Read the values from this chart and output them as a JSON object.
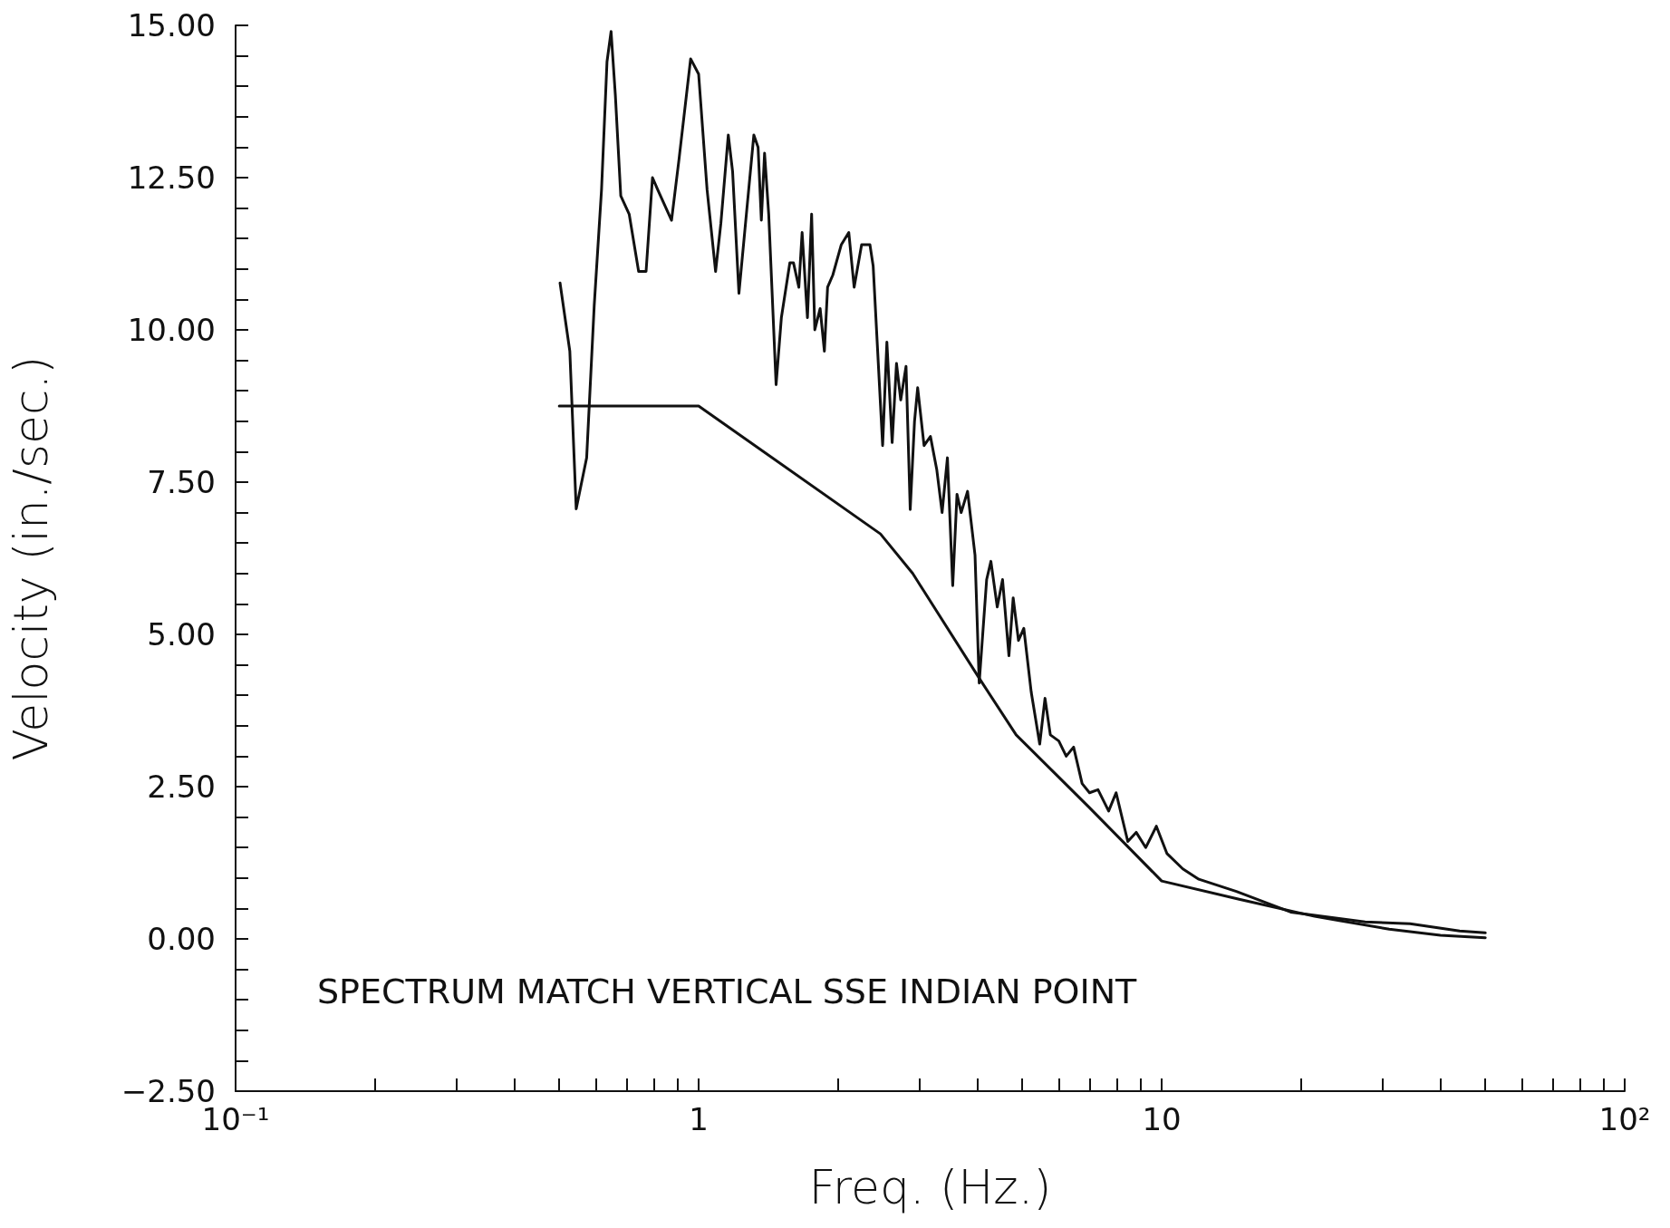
{
  "chart_data": {
    "type": "line",
    "xlabel": "Freq. (Hz.)",
    "ylabel": "Velocity (in./sec.)",
    "annotations": [
      "SPECTRUM MATCH VERTICAL SSE INDIAN POINT"
    ],
    "log": "x",
    "grid": false,
    "marker": "none",
    "line_style": "solid",
    "xlim": [
      0.1,
      100
    ],
    "ylim": [
      -2.5,
      15
    ],
    "xticks": [
      {
        "value": 0.1,
        "label": "10⁻¹"
      },
      {
        "value": 0.2,
        "label": null
      },
      {
        "value": 0.3,
        "label": null
      },
      {
        "value": 0.4,
        "label": null
      },
      {
        "value": 0.5,
        "label": null
      },
      {
        "value": 0.6,
        "label": null
      },
      {
        "value": 0.7,
        "label": null
      },
      {
        "value": 0.8,
        "label": null
      },
      {
        "value": 0.9,
        "label": null
      },
      1,
      {
        "value": 2,
        "label": null
      },
      {
        "value": 3,
        "label": null
      },
      {
        "value": 4,
        "label": null
      },
      {
        "value": 5,
        "label": null
      },
      {
        "value": 6,
        "label": null
      },
      {
        "value": 7,
        "label": null
      },
      {
        "value": 8,
        "label": null
      },
      {
        "value": 9,
        "label": null
      },
      10,
      {
        "value": 20,
        "label": null
      },
      {
        "value": 30,
        "label": null
      },
      {
        "value": 40,
        "label": null
      },
      {
        "value": 50,
        "label": null
      },
      {
        "value": 60,
        "label": null
      },
      {
        "value": 70,
        "label": null
      },
      {
        "value": 80,
        "label": null
      },
      {
        "value": 90,
        "label": null
      },
      {
        "value": 100,
        "label": "10²"
      }
    ],
    "yticks": [
      {
        "value": -2.5,
        "label": "−2.50"
      },
      {
        "value": -2,
        "label": null
      },
      {
        "value": -1.5,
        "label": null
      },
      {
        "value": -1,
        "label": null
      },
      {
        "value": -0.5,
        "label": null
      },
      {
        "value": 0,
        "label": "0.00"
      },
      {
        "value": 0.5,
        "label": null
      },
      {
        "value": 1,
        "label": null
      },
      {
        "value": 1.5,
        "label": null
      },
      {
        "value": 2,
        "label": null
      },
      {
        "value": 2.5,
        "label": "2.50"
      },
      {
        "value": 3,
        "label": null
      },
      {
        "value": 3.5,
        "label": null
      },
      {
        "value": 4,
        "label": null
      },
      {
        "value": 4.5,
        "label": null
      },
      {
        "value": 5,
        "label": "5.00"
      },
      {
        "value": 5.5,
        "label": null
      },
      {
        "value": 6,
        "label": null
      },
      {
        "value": 6.5,
        "label": null
      },
      {
        "value": 7,
        "label": null
      },
      {
        "value": 7.5,
        "label": "7.50"
      },
      {
        "value": 8,
        "label": null
      },
      {
        "value": 8.5,
        "label": null
      },
      {
        "value": 9,
        "label": null
      },
      {
        "value": 9.5,
        "label": null
      },
      {
        "value": 10,
        "label": "10.00"
      },
      {
        "value": 10.5,
        "label": null
      },
      {
        "value": 11,
        "label": null
      },
      {
        "value": 11.5,
        "label": null
      },
      {
        "value": 12,
        "label": null
      },
      {
        "value": 12.5,
        "label": "12.50"
      },
      {
        "value": 13,
        "label": null
      },
      {
        "value": 13.5,
        "label": null
      },
      {
        "value": 14,
        "label": null
      },
      {
        "value": 14.5,
        "label": null
      },
      {
        "value": 15,
        "label": "15.00"
      }
    ],
    "series": [
      {
        "color": "#111111",
        "x": [
          0.502,
          0.527,
          0.544,
          0.573,
          0.595,
          0.617,
          0.634,
          0.647,
          0.661,
          0.679,
          0.708,
          0.742,
          0.77,
          0.795,
          0.816,
          0.874,
          0.907,
          0.961,
          1.0,
          1.043,
          1.088,
          1.117,
          1.159,
          1.184,
          1.222,
          1.268,
          1.316,
          1.344,
          1.366,
          1.388,
          1.417,
          1.47,
          1.509,
          1.574,
          1.603,
          1.646,
          1.673,
          1.718,
          1.754,
          1.782,
          1.83,
          1.869,
          1.899,
          1.949,
          2.033,
          2.11,
          2.167,
          2.249,
          2.344,
          2.382,
          2.497,
          2.55,
          2.618,
          2.675,
          2.732,
          2.805,
          2.864,
          2.926,
          2.972,
          3.068,
          3.167,
          3.269,
          3.356,
          3.446,
          3.538,
          3.614,
          3.69,
          3.809,
          3.953,
          4.036,
          4.188,
          4.278,
          4.415,
          4.533,
          4.679,
          4.779,
          4.907,
          5.038,
          5.228,
          5.453,
          5.598,
          5.749,
          5.996,
          6.221,
          6.454,
          6.733,
          6.986,
          7.287,
          7.683,
          7.972,
          8.45,
          8.81,
          9.24,
          9.74,
          10.27,
          11.11,
          12.03,
          14.5,
          19,
          27.5,
          34.4,
          44,
          50
        ],
        "values": [
          10.77,
          9.65,
          7.06,
          7.9,
          10.4,
          12.3,
          14.4,
          14.9,
          13.85,
          12.2,
          11.9,
          10.96,
          10.96,
          12.5,
          12.3,
          11.8,
          12.8,
          14.45,
          14.2,
          12.3,
          10.96,
          11.75,
          13.2,
          12.6,
          10.6,
          11.9,
          13.2,
          13.0,
          11.8,
          12.9,
          11.9,
          9.1,
          10.2,
          11.1,
          11.1,
          10.7,
          11.6,
          10.2,
          11.9,
          10.0,
          10.35,
          9.65,
          10.7,
          10.9,
          11.4,
          11.6,
          10.7,
          11.4,
          11.4,
          11.05,
          8.1,
          9.8,
          8.15,
          9.45,
          8.85,
          9.4,
          7.05,
          8.5,
          9.05,
          8.1,
          8.25,
          7.7,
          7.0,
          7.9,
          5.8,
          7.3,
          7.0,
          7.35,
          6.3,
          4.2,
          5.9,
          6.2,
          5.45,
          5.9,
          4.65,
          5.6,
          4.9,
          5.1,
          4.05,
          3.2,
          3.95,
          3.35,
          3.25,
          3.0,
          3.15,
          2.55,
          2.4,
          2.45,
          2.1,
          2.4,
          1.6,
          1.75,
          1.5,
          1.85,
          1.4,
          1.15,
          0.98,
          0.78,
          0.44,
          0.28,
          0.25,
          0.13,
          0.1
        ]
      },
      {
        "color": "#111111",
        "x": [
          0.5,
          1.0,
          2.47,
          2.9,
          4.06,
          4.85,
          6.95,
          10,
          14.7,
          21.4,
          31,
          40,
          50
        ],
        "values": [
          8.75,
          8.75,
          6.65,
          6.0,
          4.25,
          3.35,
          2.17,
          0.95,
          0.65,
          0.37,
          0.16,
          0.06,
          0.02
        ]
      }
    ]
  }
}
